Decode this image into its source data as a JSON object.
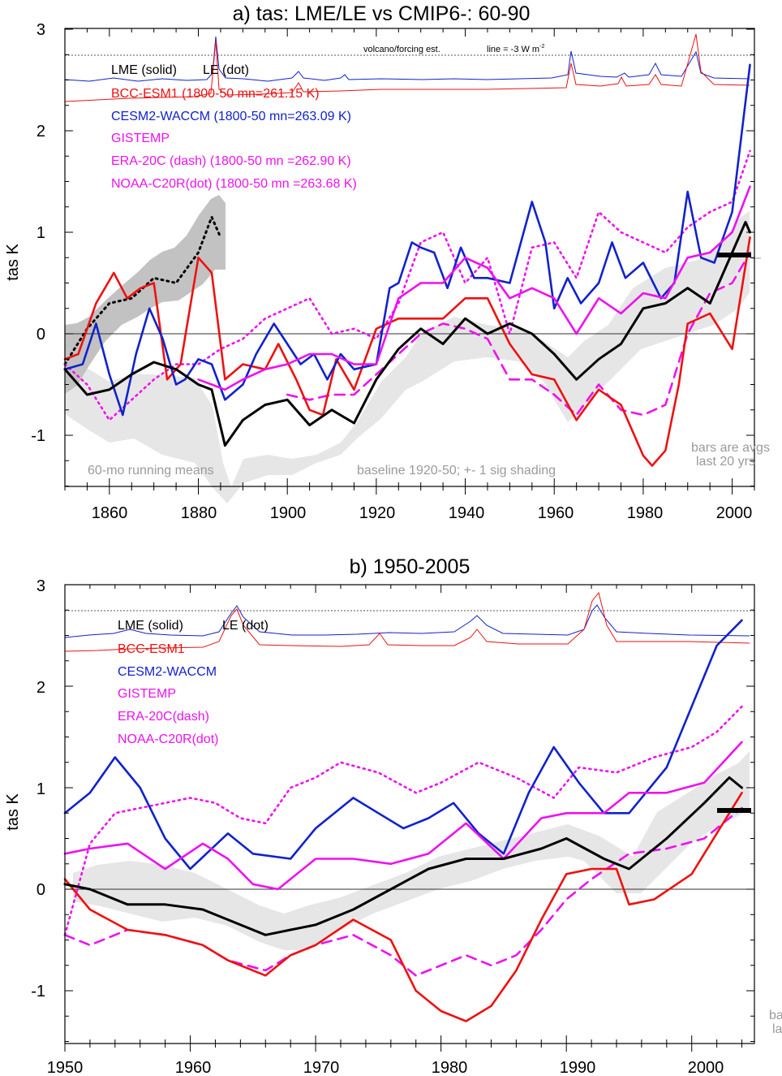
{
  "figure": {
    "panel_a": {
      "title": "a) tas: LME/LE vs CMIP6-: 60-90",
      "ylabel": "tas K",
      "y_ticks": [
        "3",
        "2",
        "1",
        "0",
        "-1"
      ],
      "x_ticks": [
        "1860",
        "1880",
        "1900",
        "1920",
        "1940",
        "1960",
        "1980",
        "2000"
      ],
      "legend": [
        {
          "text": "LME (solid)",
          "color": "#000000"
        },
        {
          "text": "LE (dot)",
          "color": "#000000"
        },
        {
          "text": "BCC-ESM1 (1800-50 mn=261.15 K)",
          "color": "#ee1111"
        },
        {
          "text": "CESM2-WACCM (1800-50 mn=263.09 K)",
          "color": "#1122cc"
        },
        {
          "text": "GISTEMP",
          "color": "#ee11ee"
        },
        {
          "text": "ERA-20C (dash) (1800-50 mn =262.90 K)",
          "color": "#ee11ee"
        },
        {
          "text": "NOAA-C20R(dot) (1800-50 mn =263.68 K)",
          "color": "#ee11ee"
        }
      ],
      "volcano_label": "volcano/forcing est.",
      "line_label": "line = -3 W m",
      "line_label_sup": "-2",
      "notes": {
        "running_means": "60-mo running means",
        "baseline": "baseline 1920-50; +- 1 sig shading",
        "bars_1": "bars are avgs",
        "bars_2": "last 20 yrs"
      }
    },
    "panel_b": {
      "title": "b) 1950-2005",
      "ylabel": "tas K",
      "y_ticks": [
        "3",
        "2",
        "1",
        "0",
        "-1"
      ],
      "x_ticks": [
        "1950",
        "1960",
        "1970",
        "1980",
        "1990",
        "2000"
      ],
      "legend": [
        {
          "text": "LME (solid)",
          "color": "#000000"
        },
        {
          "text": "LE (dot)",
          "color": "#000000"
        },
        {
          "text": "BCC-ESM1",
          "color": "#ee1111"
        },
        {
          "text": "CESM2-WACCM",
          "color": "#1122cc"
        },
        {
          "text": "GISTEMP",
          "color": "#ee11ee"
        },
        {
          "text": "ERA-20C(dash)",
          "color": "#ee11ee"
        },
        {
          "text": "NOAA-C20R(dot)",
          "color": "#ee11ee"
        }
      ],
      "notes": {
        "bars_1": "ba",
        "bars_2": "la"
      }
    }
  },
  "chart_data": [
    {
      "type": "line",
      "title": "a) tas: LME/LE vs CMIP6-: 60-90",
      "ylabel": "tas K",
      "xlim": [
        1850,
        2005
      ],
      "ylim": [
        -1.5,
        3.0
      ],
      "series": [
        {
          "name": "LME (solid)",
          "color": "#000000",
          "style": "solid",
          "x": [
            1850,
            1855,
            1860,
            1865,
            1870,
            1875,
            1880,
            1883,
            1886,
            1890,
            1895,
            1900,
            1905,
            1910,
            1915,
            1920,
            1925,
            1930,
            1935,
            1940,
            1945,
            1950,
            1955,
            1960,
            1965,
            1970,
            1975,
            1980,
            1985,
            1990,
            1995,
            2000,
            2003,
            2004
          ],
          "y": [
            -0.35,
            -0.6,
            -0.55,
            -0.4,
            -0.28,
            -0.35,
            -0.5,
            -0.55,
            -1.1,
            -0.85,
            -0.7,
            -0.65,
            -0.9,
            -0.75,
            -0.88,
            -0.45,
            -0.15,
            0.05,
            -0.1,
            0.15,
            0.0,
            0.1,
            0.0,
            -0.2,
            -0.45,
            -0.25,
            -0.1,
            0.25,
            0.3,
            0.45,
            0.3,
            0.8,
            1.1,
            1.0
          ]
        },
        {
          "name": "LE (dot)",
          "color": "#000000",
          "style": "dot",
          "x": [
            1850,
            1855,
            1860,
            1865,
            1870,
            1875,
            1880,
            1883,
            1885
          ],
          "y": [
            -0.3,
            0.05,
            0.3,
            0.35,
            0.55,
            0.5,
            0.8,
            1.15,
            0.95
          ]
        },
        {
          "name": "BCC-ESM1",
          "color": "#ee1111",
          "style": "solid",
          "x": [
            1850,
            1853,
            1857,
            1861,
            1864,
            1867,
            1870,
            1873,
            1876,
            1880,
            1883,
            1886,
            1890,
            1895,
            1898,
            1902,
            1905,
            1908,
            1911,
            1915,
            1920,
            1925,
            1930,
            1935,
            1940,
            1945,
            1950,
            1955,
            1960,
            1965,
            1970,
            1975,
            1980,
            1982,
            1985,
            1988,
            1990,
            1995,
            2000,
            2004
          ],
          "y": [
            -0.25,
            -0.2,
            0.3,
            0.6,
            0.35,
            0.45,
            0.5,
            -0.45,
            -0.3,
            0.75,
            0.6,
            -0.45,
            -0.3,
            -0.35,
            -0.1,
            -0.45,
            -0.75,
            -0.8,
            -0.25,
            -0.55,
            0.05,
            0.15,
            0.15,
            0.15,
            0.35,
            0.35,
            -0.1,
            -0.4,
            -0.45,
            -0.85,
            -0.55,
            -0.7,
            -1.2,
            -1.3,
            -1.15,
            -0.5,
            0.1,
            0.2,
            -0.15,
            0.95
          ]
        },
        {
          "name": "CESM2-WACCM",
          "color": "#1122cc",
          "style": "solid",
          "x": [
            1850,
            1854,
            1857,
            1860,
            1863,
            1866,
            1869,
            1872,
            1875,
            1877,
            1880,
            1883,
            1886,
            1890,
            1893,
            1897,
            1900,
            1903,
            1906,
            1909,
            1912,
            1915,
            1920,
            1923,
            1925,
            1928,
            1930,
            1933,
            1936,
            1939,
            1942,
            1945,
            1950,
            1955,
            1958,
            1960,
            1963,
            1966,
            1970,
            1973,
            1976,
            1980,
            1984,
            1987,
            1990,
            1993,
            1996,
            2000,
            2004
          ],
          "y": [
            -0.35,
            -0.3,
            0.1,
            -0.4,
            -0.8,
            -0.2,
            0.25,
            -0.05,
            -0.5,
            -0.45,
            -0.25,
            -0.3,
            -0.65,
            -0.5,
            -0.2,
            0.1,
            -0.1,
            -0.3,
            -0.2,
            -0.45,
            -0.2,
            -0.35,
            -0.3,
            0.45,
            0.5,
            0.9,
            0.85,
            0.8,
            0.45,
            0.85,
            0.55,
            0.55,
            0.5,
            1.3,
            0.9,
            0.25,
            0.55,
            0.3,
            0.5,
            0.9,
            0.55,
            0.7,
            0.35,
            0.5,
            1.4,
            0.75,
            0.7,
            1.2,
            2.65
          ]
        },
        {
          "name": "GISTEMP",
          "color": "#ee11ee",
          "style": "solid",
          "x": [
            1880,
            1883,
            1886,
            1890,
            1895,
            1900,
            1905,
            1910,
            1915,
            1920,
            1925,
            1930,
            1935,
            1940,
            1945,
            1950,
            1955,
            1960,
            1965,
            1970,
            1975,
            1980,
            1985,
            1990,
            1995,
            2000,
            2004
          ],
          "y": [
            -0.45,
            -0.5,
            -0.55,
            -0.45,
            -0.35,
            -0.3,
            -0.2,
            -0.2,
            -0.3,
            -0.3,
            0.35,
            0.5,
            0.5,
            0.75,
            0.65,
            0.35,
            0.45,
            0.35,
            0.0,
            0.35,
            0.2,
            0.4,
            0.35,
            0.75,
            0.8,
            1.0,
            1.45
          ]
        },
        {
          "name": "ERA-20C (dash)",
          "color": "#ee11ee",
          "style": "dash",
          "x": [
            1900,
            1905,
            1910,
            1915,
            1920,
            1925,
            1930,
            1935,
            1940,
            1945,
            1950,
            1955,
            1960,
            1965,
            1970,
            1975,
            1980,
            1985,
            1990,
            1995,
            2000,
            2004
          ],
          "y": [
            -0.6,
            -0.65,
            -0.6,
            -0.6,
            -0.4,
            -0.2,
            0.0,
            0.1,
            0.05,
            -0.05,
            -0.45,
            -0.45,
            -0.6,
            -0.8,
            -0.5,
            -0.75,
            -0.8,
            -0.7,
            0.0,
            0.4,
            0.5,
            0.8
          ]
        },
        {
          "name": "NOAA-C20R(dot)",
          "color": "#ee11ee",
          "style": "dot",
          "x": [
            1850,
            1855,
            1860,
            1865,
            1870,
            1875,
            1880,
            1885,
            1890,
            1895,
            1900,
            1905,
            1910,
            1915,
            1920,
            1925,
            1930,
            1935,
            1940,
            1945,
            1950,
            1955,
            1960,
            1965,
            1970,
            1975,
            1980,
            1985,
            1990,
            1995,
            2000,
            2004
          ],
          "y": [
            -0.3,
            -0.5,
            -0.85,
            -0.65,
            -0.45,
            -0.3,
            -0.3,
            -0.15,
            -0.05,
            0.15,
            0.25,
            0.35,
            0.0,
            0.05,
            -0.05,
            0.3,
            0.9,
            1.0,
            0.5,
            0.75,
            0.0,
            0.85,
            0.9,
            0.55,
            1.2,
            1.0,
            0.9,
            0.8,
            1.05,
            1.2,
            1.3,
            1.8
          ]
        }
      ]
    },
    {
      "type": "line",
      "title": "b) 1950-2005",
      "ylabel": "tas K",
      "xlim": [
        1950,
        2005
      ],
      "ylim": [
        -1.5,
        3.0
      ],
      "series": [
        {
          "name": "LME (solid)",
          "color": "#000000",
          "style": "solid",
          "x": [
            1950,
            1952,
            1955,
            1958,
            1961,
            1963,
            1966,
            1968,
            1970,
            1973,
            1976,
            1979,
            1982,
            1985,
            1988,
            1990,
            1993,
            1995,
            1998,
            2001,
            2003,
            2004
          ],
          "y": [
            0.05,
            0.0,
            -0.15,
            -0.15,
            -0.2,
            -0.3,
            -0.45,
            -0.4,
            -0.35,
            -0.2,
            0.0,
            0.2,
            0.3,
            0.3,
            0.4,
            0.5,
            0.3,
            0.2,
            0.5,
            0.85,
            1.1,
            1.0
          ]
        },
        {
          "name": "BCC-ESM1",
          "color": "#ee1111",
          "style": "solid",
          "x": [
            1950,
            1952,
            1955,
            1958,
            1961,
            1963,
            1966,
            1968,
            1970,
            1973,
            1976,
            1978,
            1980,
            1982,
            1984,
            1986,
            1988,
            1990,
            1992,
            1994,
            1995,
            1997,
            2000,
            2002,
            2004
          ],
          "y": [
            0.1,
            -0.2,
            -0.4,
            -0.45,
            -0.55,
            -0.7,
            -0.85,
            -0.65,
            -0.55,
            -0.3,
            -0.5,
            -1.0,
            -1.2,
            -1.3,
            -1.15,
            -0.8,
            -0.3,
            0.15,
            0.2,
            0.2,
            -0.15,
            -0.1,
            0.15,
            0.55,
            0.95
          ]
        },
        {
          "name": "CESM2-WACCM",
          "color": "#1122cc",
          "style": "solid",
          "x": [
            1950,
            1952,
            1954,
            1956,
            1958,
            1960,
            1963,
            1965,
            1968,
            1970,
            1973,
            1975,
            1977,
            1979,
            1981,
            1983,
            1985,
            1987,
            1989,
            1991,
            1993,
            1995,
            1998,
            2000,
            2002,
            2004
          ],
          "y": [
            0.75,
            0.95,
            1.3,
            1.0,
            0.5,
            0.2,
            0.55,
            0.35,
            0.3,
            0.6,
            0.9,
            0.75,
            0.6,
            0.7,
            0.85,
            0.55,
            0.35,
            0.95,
            1.4,
            1.05,
            0.75,
            0.75,
            1.2,
            1.8,
            2.4,
            2.65
          ]
        },
        {
          "name": "GISTEMP",
          "color": "#ee11ee",
          "style": "solid",
          "x": [
            1950,
            1952,
            1955,
            1958,
            1961,
            1963,
            1965,
            1967,
            1970,
            1973,
            1976,
            1979,
            1982,
            1985,
            1988,
            1990,
            1993,
            1995,
            1998,
            2001,
            2004
          ],
          "y": [
            0.35,
            0.4,
            0.45,
            0.2,
            0.45,
            0.3,
            0.05,
            0.0,
            0.3,
            0.3,
            0.25,
            0.35,
            0.65,
            0.3,
            0.7,
            0.75,
            0.75,
            0.95,
            0.95,
            1.05,
            1.45
          ]
        },
        {
          "name": "ERA-20C(dash)",
          "color": "#ee11ee",
          "style": "dash",
          "x": [
            1950,
            1952,
            1955,
            1958,
            1961,
            1963,
            1966,
            1968,
            1970,
            1973,
            1976,
            1978,
            1980,
            1982,
            1984,
            1986,
            1988,
            1990,
            1992,
            1995,
            1998,
            2001,
            2004
          ],
          "y": [
            -0.45,
            -0.55,
            -0.4,
            -0.45,
            -0.55,
            -0.7,
            -0.8,
            -0.65,
            -0.55,
            -0.45,
            -0.65,
            -0.85,
            -0.75,
            -0.65,
            -0.75,
            -0.65,
            -0.4,
            -0.1,
            0.1,
            0.35,
            0.4,
            0.5,
            0.8
          ]
        },
        {
          "name": "NOAA-C20R(dot)",
          "color": "#ee11ee",
          "style": "dot",
          "x": [
            1950,
            1952,
            1954,
            1956,
            1958,
            1960,
            1962,
            1964,
            1966,
            1968,
            1970,
            1972,
            1975,
            1978,
            1980,
            1983,
            1986,
            1989,
            1991,
            1994,
            1997,
            2000,
            2002,
            2004
          ],
          "y": [
            -0.45,
            0.45,
            0.75,
            0.8,
            0.85,
            0.9,
            0.85,
            0.7,
            0.65,
            1.0,
            1.1,
            1.25,
            1.15,
            0.95,
            1.05,
            1.25,
            1.1,
            0.9,
            1.2,
            1.15,
            1.3,
            1.4,
            1.55,
            1.8
          ]
        }
      ]
    }
  ]
}
